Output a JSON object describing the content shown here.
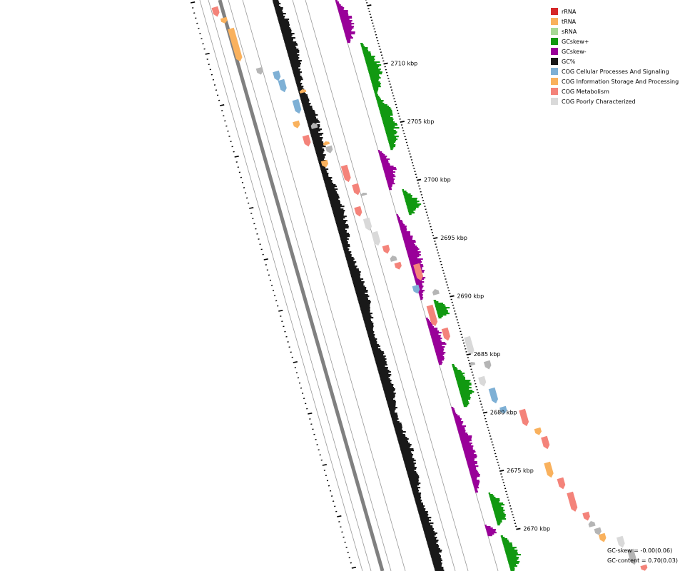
{
  "colors": {
    "rRNA": "#d62728",
    "tRNA": "#f9b15d",
    "sRNA": "#a6d996",
    "gcskew_pos": "#119911",
    "gcskew_neg": "#990099",
    "gc_percent": "#191919",
    "cog_cellular": "#7eb0d5",
    "cog_information": "#f9b15d",
    "cog_metabolism": "#f4837a",
    "cog_poorly": "#d9d9d9",
    "cog_poorly_dark": "#b5b5b5",
    "backbone": "#808080",
    "track_line": "#999999"
  },
  "legend": [
    {
      "label": "rRNA",
      "color": "#d62728",
      "icon": "square-swatch"
    },
    {
      "label": "tRNA",
      "color": "#f9b15d",
      "icon": "square-swatch"
    },
    {
      "label": "sRNA",
      "color": "#a6d996",
      "icon": "square-swatch"
    },
    {
      "label": "GCskew+",
      "color": "#119911",
      "icon": "square-swatch"
    },
    {
      "label": "GCskew-",
      "color": "#990099",
      "icon": "square-swatch"
    },
    {
      "label": "GC%",
      "color": "#191919",
      "icon": "square-swatch"
    },
    {
      "label": "COG Cellular Processes And Signaling",
      "color": "#7eb0d5",
      "icon": "square-swatch"
    },
    {
      "label": "COG Information Storage And Processing",
      "color": "#f9b15d",
      "icon": "square-swatch"
    },
    {
      "label": "COG Metabolism",
      "color": "#f4837a",
      "icon": "square-swatch"
    },
    {
      "label": "COG Poorly Characterized",
      "color": "#d9d9d9",
      "icon": "square-swatch"
    }
  ],
  "axis_ticks": [
    {
      "kbp": 2710,
      "label": "2710 kbp"
    },
    {
      "kbp": 2705,
      "label": "2705 kbp"
    },
    {
      "kbp": 2700,
      "label": "2700 kbp"
    },
    {
      "kbp": 2695,
      "label": "2695 kbp"
    },
    {
      "kbp": 2690,
      "label": "2690 kbp"
    },
    {
      "kbp": 2685,
      "label": "2685 kbp"
    },
    {
      "kbp": 2680,
      "label": "2680 kbp"
    },
    {
      "kbp": 2675,
      "label": "2675 kbp"
    },
    {
      "kbp": 2670,
      "label": "2670 kbp"
    }
  ],
  "stats": {
    "gc_skew": "GC-skew = -0.00(0.06)",
    "gc_content": "GC-content = 0.70(0.03)"
  }
}
